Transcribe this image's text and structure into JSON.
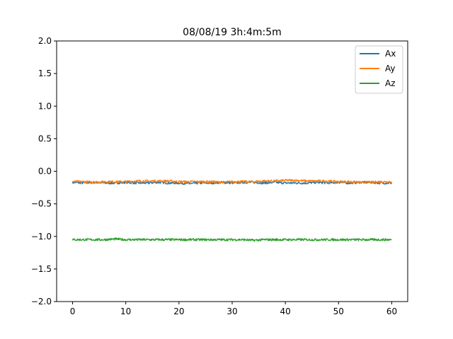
{
  "chart_data": {
    "type": "line",
    "title": "08/08/19 3h:4m:5m",
    "xlabel": "",
    "ylabel": "",
    "xlim": [
      -3,
      63
    ],
    "ylim": [
      -2.0,
      2.0
    ],
    "x_ticks": [
      0,
      10,
      20,
      30,
      40,
      50,
      60
    ],
    "x_tick_labels": [
      "0",
      "10",
      "20",
      "30",
      "40",
      "50",
      "60"
    ],
    "y_ticks": [
      -2.0,
      -1.5,
      -1.0,
      -0.5,
      0.0,
      0.5,
      1.0,
      1.5,
      2.0
    ],
    "y_tick_labels": [
      "−2.0",
      "−1.5",
      "−1.0",
      "−0.5",
      "0.0",
      "0.5",
      "1.0",
      "1.5",
      "2.0"
    ],
    "grid": false,
    "legend": "top-right",
    "series": [
      {
        "name": "Ax",
        "color": "#1f77b4",
        "x": [
          0,
          2,
          4,
          6,
          8,
          10,
          12,
          14,
          16,
          18,
          20,
          22,
          24,
          26,
          28,
          30,
          32,
          34,
          36,
          38,
          40,
          42,
          44,
          46,
          48,
          50,
          52,
          54,
          56,
          58,
          60
        ],
        "values": [
          -0.17,
          -0.18,
          -0.17,
          -0.18,
          -0.18,
          -0.17,
          -0.18,
          -0.18,
          -0.17,
          -0.18,
          -0.18,
          -0.19,
          -0.18,
          -0.18,
          -0.17,
          -0.18,
          -0.17,
          -0.17,
          -0.18,
          -0.17,
          -0.18,
          -0.18,
          -0.18,
          -0.17,
          -0.18,
          -0.17,
          -0.18,
          -0.17,
          -0.17,
          -0.18,
          -0.18
        ]
      },
      {
        "name": "Ay",
        "color": "#ff7f0e",
        "x": [
          0,
          2,
          4,
          6,
          8,
          10,
          12,
          14,
          16,
          18,
          20,
          22,
          24,
          26,
          28,
          30,
          32,
          34,
          36,
          38,
          40,
          42,
          44,
          46,
          48,
          50,
          52,
          54,
          56,
          58,
          60
        ],
        "values": [
          -0.16,
          -0.16,
          -0.17,
          -0.16,
          -0.16,
          -0.16,
          -0.15,
          -0.15,
          -0.15,
          -0.15,
          -0.16,
          -0.16,
          -0.16,
          -0.16,
          -0.17,
          -0.16,
          -0.16,
          -0.16,
          -0.15,
          -0.15,
          -0.14,
          -0.14,
          -0.15,
          -0.15,
          -0.15,
          -0.16,
          -0.16,
          -0.17,
          -0.17,
          -0.16,
          -0.16
        ]
      },
      {
        "name": "Az",
        "color": "#2ca02c",
        "x": [
          0,
          2,
          4,
          6,
          8,
          10,
          12,
          14,
          16,
          18,
          20,
          22,
          24,
          26,
          28,
          30,
          32,
          34,
          36,
          38,
          40,
          42,
          44,
          46,
          48,
          50,
          52,
          54,
          56,
          58,
          60
        ],
        "values": [
          -1.05,
          -1.05,
          -1.05,
          -1.05,
          -1.04,
          -1.05,
          -1.05,
          -1.05,
          -1.05,
          -1.05,
          -1.05,
          -1.05,
          -1.05,
          -1.05,
          -1.05,
          -1.05,
          -1.05,
          -1.06,
          -1.05,
          -1.05,
          -1.05,
          -1.05,
          -1.05,
          -1.05,
          -1.05,
          -1.05,
          -1.05,
          -1.05,
          -1.05,
          -1.05,
          -1.05
        ]
      }
    ]
  }
}
